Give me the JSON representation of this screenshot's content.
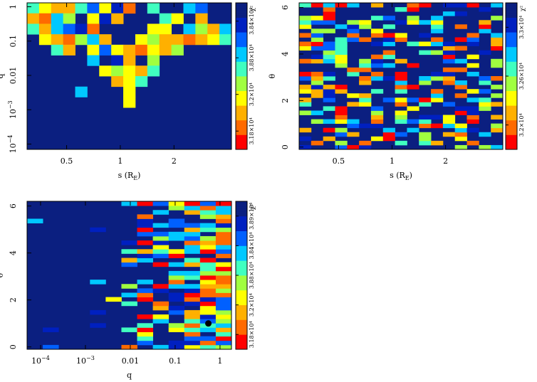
{
  "colors": {
    "background": "#0b1f80",
    "scale": [
      "#ff0000",
      "#ff6a00",
      "#ffb000",
      "#ffff00",
      "#a0ff40",
      "#40ffc0",
      "#00c8ff",
      "#0060ff",
      "#0020c0",
      "#0b1f80"
    ]
  },
  "chart_data": [
    {
      "type": "heatmap",
      "panel": "top-left",
      "xlabel": "s (R_E)",
      "ylabel": "q",
      "xscale": "log",
      "yscale": "log",
      "xlim": [
        0.3,
        4.2
      ],
      "ylim": [
        7e-05,
        1.3
      ],
      "x_ticks": [
        {
          "v": 0.5,
          "label": "0.5"
        },
        {
          "v": 1,
          "label": "1"
        },
        {
          "v": 2,
          "label": "2"
        }
      ],
      "y_ticks": [
        {
          "v": 1,
          "label": "1"
        },
        {
          "v": 0.1,
          "label": "0.1"
        },
        {
          "v": 0.01,
          "label": "0.01"
        },
        {
          "v": 0.001,
          "label": "10^-3"
        },
        {
          "v": 0.0001,
          "label": "10^-4"
        }
      ],
      "colorbar": {
        "title": "χ²",
        "tick_labels": [
          "3.18×10⁴",
          "3.2×10⁴",
          "3.88×10⁴",
          "3.84×10⁴"
        ]
      },
      "grid": {
        "nx": 17,
        "ny": 14
      },
      "cells": [
        [
          0,
          0,
          5
        ],
        [
          1,
          0,
          3
        ],
        [
          2,
          0,
          2
        ],
        [
          3,
          0,
          2
        ],
        [
          4,
          0,
          5
        ],
        [
          5,
          0,
          7
        ],
        [
          6,
          0,
          3
        ],
        [
          7,
          0,
          8
        ],
        [
          8,
          0,
          1
        ],
        [
          10,
          0,
          5
        ],
        [
          13,
          0,
          6
        ],
        [
          14,
          0,
          7
        ],
        [
          0,
          1,
          2
        ],
        [
          1,
          1,
          1
        ],
        [
          2,
          1,
          6
        ],
        [
          3,
          1,
          4
        ],
        [
          5,
          1,
          3
        ],
        [
          6,
          1,
          8
        ],
        [
          7,
          1,
          2
        ],
        [
          11,
          1,
          5
        ],
        [
          12,
          1,
          3
        ],
        [
          14,
          1,
          2
        ],
        [
          0,
          2,
          5
        ],
        [
          1,
          2,
          2
        ],
        [
          2,
          2,
          6
        ],
        [
          3,
          2,
          7
        ],
        [
          4,
          2,
          8
        ],
        [
          5,
          2,
          1
        ],
        [
          10,
          2,
          3
        ],
        [
          11,
          2,
          3
        ],
        [
          13,
          2,
          6
        ],
        [
          14,
          2,
          4
        ],
        [
          15,
          2,
          2
        ],
        [
          16,
          2,
          6
        ],
        [
          1,
          3,
          3
        ],
        [
          2,
          3,
          2
        ],
        [
          3,
          3,
          1
        ],
        [
          4,
          3,
          4
        ],
        [
          5,
          3,
          6
        ],
        [
          6,
          3,
          2
        ],
        [
          9,
          3,
          3
        ],
        [
          10,
          3,
          4
        ],
        [
          11,
          3,
          2
        ],
        [
          12,
          3,
          2
        ],
        [
          13,
          3,
          1
        ],
        [
          14,
          3,
          2
        ],
        [
          15,
          3,
          3
        ],
        [
          16,
          3,
          5
        ],
        [
          2,
          4,
          5
        ],
        [
          3,
          4,
          2
        ],
        [
          5,
          4,
          3
        ],
        [
          6,
          4,
          7
        ],
        [
          7,
          4,
          3
        ],
        [
          8,
          4,
          2
        ],
        [
          9,
          4,
          1
        ],
        [
          10,
          4,
          3
        ],
        [
          11,
          4,
          2
        ],
        [
          12,
          4,
          4
        ],
        [
          5,
          5,
          6
        ],
        [
          7,
          5,
          8
        ],
        [
          8,
          5,
          2
        ],
        [
          10,
          5,
          4
        ],
        [
          6,
          6,
          3
        ],
        [
          7,
          6,
          4
        ],
        [
          8,
          6,
          3
        ],
        [
          9,
          6,
          2
        ],
        [
          10,
          6,
          5
        ],
        [
          7,
          7,
          2
        ],
        [
          8,
          7,
          3
        ],
        [
          9,
          7,
          5
        ],
        [
          4,
          8,
          6
        ],
        [
          8,
          8,
          3
        ],
        [
          8,
          9,
          3
        ]
      ]
    },
    {
      "type": "heatmap",
      "panel": "top-right",
      "xlabel": "s (R_E)",
      "ylabel": "θ",
      "xscale": "log",
      "yscale": "linear",
      "xlim": [
        0.3,
        4.2
      ],
      "ylim": [
        -0.1,
        6.2
      ],
      "x_ticks": [
        {
          "v": 0.5,
          "label": "0.5"
        },
        {
          "v": 1,
          "label": "1"
        },
        {
          "v": 2,
          "label": "2"
        }
      ],
      "y_ticks": [
        {
          "v": 0,
          "label": "0"
        },
        {
          "v": 2,
          "label": "2"
        },
        {
          "v": 4,
          "label": "4"
        },
        {
          "v": 6,
          "label": "6"
        }
      ],
      "colorbar": {
        "title": "χ²",
        "tick_labels": [
          "3.2×10⁴",
          "3.26×10⁴",
          "3.3×10⁴"
        ]
      },
      "grid": {
        "nx": 17,
        "ny": 34
      },
      "random_seed": 7,
      "fill_probability": 0.45
    },
    {
      "type": "heatmap",
      "panel": "bottom-left",
      "xlabel": "q",
      "ylabel": "θ",
      "xscale": "log",
      "yscale": "linear",
      "xlim": [
        5e-05,
        1.8
      ],
      "ylim": [
        -0.1,
        6.2
      ],
      "x_ticks": [
        {
          "v": 0.0001,
          "label": "10^-4"
        },
        {
          "v": 0.001,
          "label": "10^-3"
        },
        {
          "v": 0.01,
          "label": "0.01"
        },
        {
          "v": 0.1,
          "label": "0.1"
        },
        {
          "v": 1,
          "label": "1"
        }
      ],
      "y_ticks": [
        {
          "v": 0,
          "label": "0"
        },
        {
          "v": 2,
          "label": "2"
        },
        {
          "v": 4,
          "label": "4"
        },
        {
          "v": 6,
          "label": "6"
        }
      ],
      "colorbar": {
        "title": "χ²",
        "tick_labels": [
          "3.18×10⁴",
          "3.2×10⁴",
          "3.88×10⁴",
          "3.84×10⁴",
          "3.89×10⁴"
        ]
      },
      "grid": {
        "nx": 13,
        "ny": 34
      },
      "random_seed": 19,
      "marker": {
        "q": 0.55,
        "theta": 1.0
      }
    }
  ]
}
